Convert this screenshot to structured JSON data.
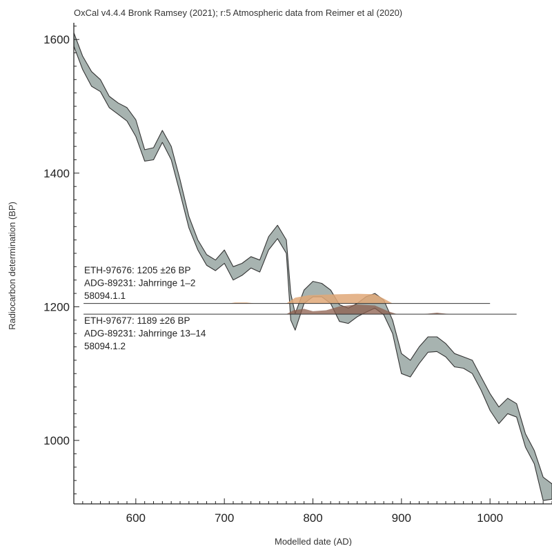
{
  "chart_data": {
    "type": "area",
    "title": "OxCal v4.4.4 Bronk Ramsey (2021); r:5 Atmospheric data from Reimer et al (2020)",
    "xlabel": "Modelled date (AD)",
    "ylabel": "Radiocarbon determination (BP)",
    "xlim": [
      530,
      1070
    ],
    "ylim": [
      905,
      1625
    ],
    "x_ticks": [
      600,
      700,
      800,
      900,
      1000
    ],
    "y_ticks": [
      1000,
      1200,
      1400,
      1600
    ],
    "grid": false,
    "colors": {
      "curve_fill": "#a7b3b0",
      "curve_edge": "#333333",
      "dist_1": "#e0a878",
      "dist_2": "#8c5e4c"
    },
    "calibration_curve": {
      "x": [
        530,
        540,
        550,
        560,
        570,
        580,
        590,
        600,
        610,
        620,
        630,
        640,
        650,
        660,
        670,
        680,
        690,
        700,
        710,
        720,
        730,
        740,
        750,
        760,
        770,
        775,
        780,
        790,
        800,
        810,
        820,
        830,
        840,
        850,
        860,
        870,
        880,
        890,
        900,
        910,
        920,
        930,
        940,
        950,
        960,
        970,
        980,
        990,
        1000,
        1010,
        1020,
        1030,
        1040,
        1050,
        1060,
        1070
      ],
      "upper": [
        1610,
        1575,
        1552,
        1540,
        1515,
        1505,
        1498,
        1480,
        1435,
        1438,
        1464,
        1440,
        1390,
        1335,
        1300,
        1278,
        1270,
        1285,
        1260,
        1265,
        1275,
        1270,
        1305,
        1322,
        1300,
        1220,
        1190,
        1225,
        1238,
        1235,
        1225,
        1203,
        1198,
        1205,
        1215,
        1220,
        1210,
        1180,
        1130,
        1120,
        1140,
        1155,
        1155,
        1145,
        1130,
        1125,
        1120,
        1095,
        1070,
        1050,
        1063,
        1055,
        1010,
        985,
        945,
        935
      ],
      "lower": [
        1590,
        1555,
        1530,
        1522,
        1498,
        1488,
        1478,
        1455,
        1418,
        1420,
        1446,
        1420,
        1370,
        1318,
        1285,
        1262,
        1254,
        1265,
        1240,
        1247,
        1258,
        1252,
        1285,
        1302,
        1280,
        1180,
        1165,
        1205,
        1215,
        1215,
        1205,
        1178,
        1175,
        1185,
        1192,
        1198,
        1188,
        1160,
        1100,
        1095,
        1115,
        1132,
        1133,
        1125,
        1110,
        1108,
        1100,
        1075,
        1045,
        1025,
        1040,
        1035,
        990,
        965,
        910,
        912
      ]
    },
    "samples": [
      {
        "id": "ETH-97676: 1205 ±26 BP",
        "description": "ADG-89231: Jahrringe 1–2",
        "lab_code": "58094.1.1",
        "value": 1205,
        "line_x": [
          541,
          1000
        ],
        "distribution": [
          {
            "x": 705,
            "h": 0
          },
          {
            "x": 712,
            "h": 0.1
          },
          {
            "x": 725,
            "h": 0.1
          },
          {
            "x": 735,
            "h": 0
          },
          {
            "x": 770,
            "h": 0
          },
          {
            "x": 780,
            "h": 0.6
          },
          {
            "x": 795,
            "h": 0.85
          },
          {
            "x": 810,
            "h": 0.9
          },
          {
            "x": 830,
            "h": 0.95
          },
          {
            "x": 850,
            "h": 1.0
          },
          {
            "x": 870,
            "h": 0.95
          },
          {
            "x": 880,
            "h": 0.5
          },
          {
            "x": 890,
            "h": 0
          }
        ]
      },
      {
        "id": "ETH-97677: 1189 ±26 BP",
        "description": "ADG-89231: Jahrringe 13–14",
        "lab_code": "58094.1.2",
        "value": 1189,
        "line_x": [
          541,
          1030
        ],
        "distribution": [
          {
            "x": 770,
            "h": 0
          },
          {
            "x": 778,
            "h": 0.4
          },
          {
            "x": 790,
            "h": 0.55
          },
          {
            "x": 800,
            "h": 0.3
          },
          {
            "x": 815,
            "h": 0.4
          },
          {
            "x": 830,
            "h": 0.8
          },
          {
            "x": 850,
            "h": 1.0
          },
          {
            "x": 870,
            "h": 0.9
          },
          {
            "x": 885,
            "h": 0.3
          },
          {
            "x": 895,
            "h": 0
          },
          {
            "x": 925,
            "h": 0
          },
          {
            "x": 940,
            "h": 0.15
          },
          {
            "x": 955,
            "h": 0
          }
        ]
      }
    ]
  }
}
